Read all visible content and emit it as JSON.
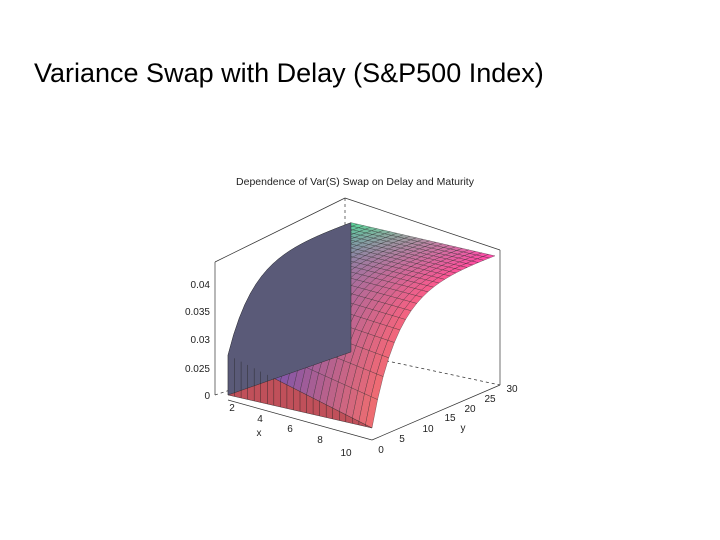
{
  "header": {
    "title": "Variance Swap with Delay (S&P500 Index)"
  },
  "figure": {
    "title": "Dependence of Var(S) Swap on Delay and Maturity",
    "z_tick_labels": [
      "0.04",
      "0.035",
      "0.03",
      "0.025",
      "0"
    ],
    "x_tick_labels": [
      "2",
      "4",
      "6",
      "8",
      "10"
    ],
    "x_axis_label": "x",
    "y_tick_labels": [
      "0",
      "5",
      "10",
      "15",
      "20",
      "25",
      "30"
    ],
    "y_axis_label": "y"
  }
}
